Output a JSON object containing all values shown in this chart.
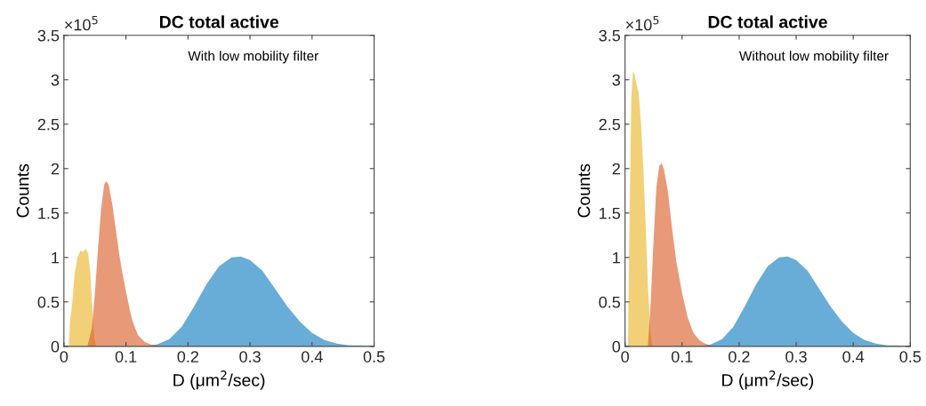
{
  "chart_data": [
    {
      "type": "area",
      "title": "DC total active",
      "xlabel": "D (μm$^{2}$/sec)",
      "ylabel": "Counts",
      "xlim": [
        0,
        0.5
      ],
      "xticks": [
        0,
        0.1,
        0.2,
        0.3,
        0.4,
        0.5
      ],
      "ylim": [
        0,
        3.5
      ],
      "yticks": [
        0,
        0.5,
        1,
        1.5,
        2,
        2.5,
        3,
        3.5
      ],
      "grid": false,
      "legend": false,
      "annotations": [
        "×10$^{5}$",
        "With low mobility filter"
      ],
      "series": [
        {
          "color": "#68acd8",
          "x": [
            0.13,
            0.15,
            0.17,
            0.19,
            0.21,
            0.23,
            0.25,
            0.27,
            0.285,
            0.3,
            0.32,
            0.34,
            0.36,
            0.38,
            0.4,
            0.42,
            0.44,
            0.46,
            0.48,
            0.5
          ],
          "values": [
            0,
            0.02,
            0.08,
            0.22,
            0.45,
            0.7,
            0.9,
            1.0,
            1.01,
            0.97,
            0.85,
            0.65,
            0.45,
            0.28,
            0.15,
            0.07,
            0.03,
            0.01,
            0.01,
            0
          ]
        },
        {
          "color": "#f2d077",
          "x": [
            0.008,
            0.01,
            0.013,
            0.017,
            0.022,
            0.027,
            0.031,
            0.035,
            0.039,
            0.043,
            0.046,
            0.049,
            0.052
          ],
          "values": [
            0,
            0.3,
            0.45,
            0.8,
            1.0,
            1.08,
            1.06,
            1.1,
            1.05,
            0.8,
            0.4,
            0.1,
            0
          ]
        },
        {
          "color": "#e89a78",
          "x": [
            0.038,
            0.045,
            0.05,
            0.055,
            0.06,
            0.065,
            0.068,
            0.072,
            0.078,
            0.085,
            0.09,
            0.095,
            0.1,
            0.105,
            0.11,
            0.115,
            0.12,
            0.13,
            0.14,
            0.15,
            0.16
          ],
          "values": [
            0,
            0.2,
            0.6,
            1.1,
            1.55,
            1.82,
            1.86,
            1.82,
            1.6,
            1.25,
            1.0,
            0.8,
            0.62,
            0.45,
            0.3,
            0.2,
            0.12,
            0.05,
            0.02,
            0.01,
            0
          ]
        }
      ]
    },
    {
      "type": "area",
      "title": "DC total active",
      "xlabel": "D (μm$^{2}$/sec)",
      "ylabel": "Counts",
      "xlim": [
        0,
        0.5
      ],
      "xticks": [
        0,
        0.1,
        0.2,
        0.3,
        0.4,
        0.5
      ],
      "ylim": [
        0,
        3.5
      ],
      "yticks": [
        0,
        0.5,
        1,
        1.5,
        2,
        2.5,
        3,
        3.5
      ],
      "grid": false,
      "legend": false,
      "annotations": [
        "×10$^{5}$",
        "Without low mobility filter"
      ],
      "series": [
        {
          "color": "#68acd8",
          "x": [
            0.13,
            0.15,
            0.17,
            0.19,
            0.21,
            0.23,
            0.25,
            0.27,
            0.285,
            0.3,
            0.32,
            0.34,
            0.36,
            0.38,
            0.4,
            0.42,
            0.44,
            0.46,
            0.48,
            0.5
          ],
          "values": [
            0,
            0.02,
            0.08,
            0.22,
            0.45,
            0.7,
            0.9,
            1.0,
            1.01,
            0.97,
            0.85,
            0.65,
            0.45,
            0.28,
            0.15,
            0.07,
            0.03,
            0.01,
            0.01,
            0
          ]
        },
        {
          "color": "#f2d077",
          "x": [
            0.005,
            0.008,
            0.011,
            0.014,
            0.017,
            0.02,
            0.024,
            0.028,
            0.032,
            0.036,
            0.04,
            0.044,
            0.048
          ],
          "values": [
            0,
            1.5,
            2.8,
            3.1,
            3.05,
            2.95,
            2.85,
            2.5,
            2.0,
            1.4,
            0.7,
            0.2,
            0
          ]
        },
        {
          "color": "#e89a78",
          "x": [
            0.04,
            0.045,
            0.05,
            0.055,
            0.06,
            0.064,
            0.068,
            0.075,
            0.082,
            0.09,
            0.1,
            0.11,
            0.12,
            0.13,
            0.14,
            0.15,
            0.16
          ],
          "values": [
            0,
            0.5,
            1.2,
            1.8,
            2.03,
            2.06,
            2.0,
            1.75,
            1.35,
            0.95,
            0.6,
            0.32,
            0.15,
            0.07,
            0.03,
            0.01,
            0
          ]
        }
      ]
    }
  ]
}
